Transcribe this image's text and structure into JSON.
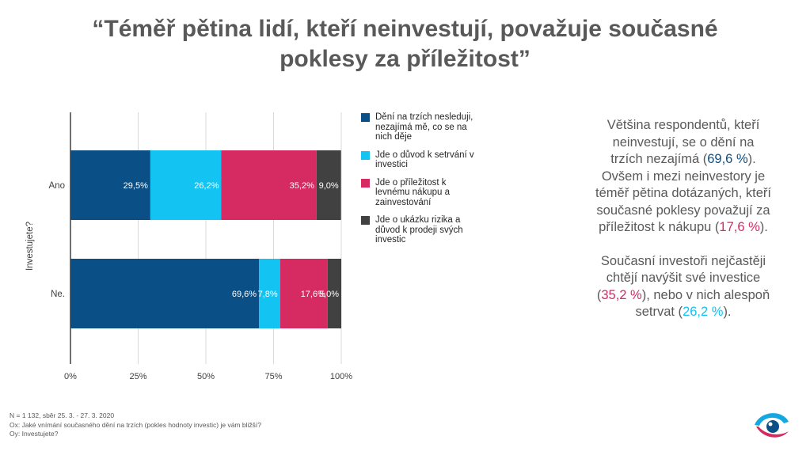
{
  "title": {
    "line1": "“Téměř pětina lidí, kteří neinvestují, považuje současné",
    "line2": "poklesy za příležitost”"
  },
  "chart_data": {
    "type": "bar",
    "orientation": "horizontal",
    "stacked": true,
    "ylabel": "Investujete?",
    "categories": [
      "Ano",
      "Ne."
    ],
    "xlim": [
      0,
      100
    ],
    "xticks": [
      "0%",
      "25%",
      "50%",
      "75%",
      "100%"
    ],
    "grid": true,
    "legend_position": "right",
    "series": [
      {
        "name": "Dění na trzích nesleduji, nezajímá mě, co se na nich děje",
        "values": [
          29.5,
          69.6
        ],
        "labels": [
          "29,5%",
          "69,6%"
        ],
        "color": "#0a4f86"
      },
      {
        "name": "Jde o důvod k setrvání v investici",
        "values": [
          26.2,
          7.8
        ],
        "labels": [
          "26,2%",
          "7,8%"
        ],
        "color": "#13c3f1"
      },
      {
        "name": "Jde o příležitost k levnému nákupu a zainvestování",
        "values": [
          35.2,
          17.6
        ],
        "labels": [
          "35,2%",
          "17,6%"
        ],
        "color": "#d62a63"
      },
      {
        "name": "Jde o ukázku rizika a důvod k prodeji svých investic",
        "values": [
          9.0,
          5.0
        ],
        "labels": [
          "9,0%",
          "5,0%"
        ],
        "color": "#414141"
      }
    ]
  },
  "insight": {
    "p1_a": "Většina respondentů, kteří neinvestují, se o dění na trzích nezajímá (",
    "p1_v1": "69,6 %",
    "p1_b": "). Ovšem i mezi neinvestory je téměř pětina dotázaných, kteří současné poklesy považují za příležitost k nákupu (",
    "p1_v2": "17,6 %",
    "p1_c": ").",
    "p2_a": "Současní investoři nejčastěji chtějí navýšit své investice (",
    "p2_v1": "35,2 %",
    "p2_b": "), nebo v nich alespoň setrvat (",
    "p2_v2": "26,2 %",
    "p2_c": ")."
  },
  "footnote": {
    "line1": "N = 1 132, sběr 25. 3. - 27. 3. 2020",
    "line2": "Ox: Jaké vnímání současného dění na trzích (pokles hodnoty investic) je vám bližší?",
    "line3": "Oy: Investujete?"
  },
  "logo": {
    "icon": "eye-logo-icon",
    "colors": [
      "#13a9e0",
      "#d62a63",
      "#0a4f86"
    ]
  }
}
